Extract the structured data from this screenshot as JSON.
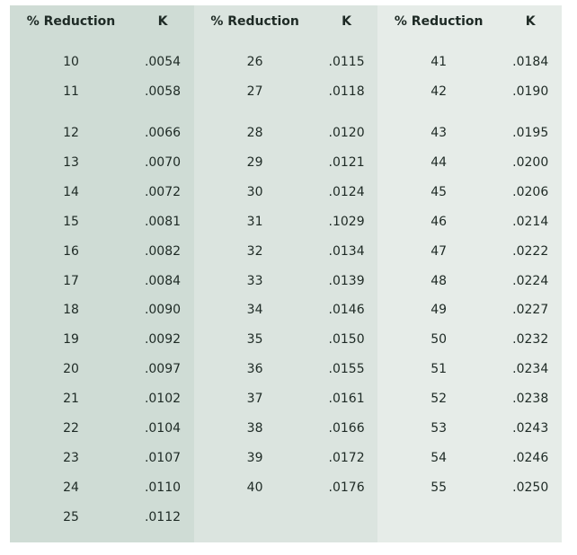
{
  "headers": {
    "pct": "% Reduction",
    "k": "K"
  },
  "columns": [
    {
      "rows": [
        {
          "pct": "10",
          "k": ".0054"
        },
        {
          "pct": "11",
          "k": ".0058"
        },
        {
          "pct": "12",
          "k": ".0066"
        },
        {
          "pct": "13",
          "k": ".0070"
        },
        {
          "pct": "14",
          "k": ".0072"
        },
        {
          "pct": "15",
          "k": ".0081"
        },
        {
          "pct": "16",
          "k": ".0082"
        },
        {
          "pct": "17",
          "k": ".0084"
        },
        {
          "pct": "18",
          "k": ".0090"
        },
        {
          "pct": "19",
          "k": ".0092"
        },
        {
          "pct": "20",
          "k": ".0097"
        },
        {
          "pct": "21",
          "k": ".0102"
        },
        {
          "pct": "22",
          "k": ".0104"
        },
        {
          "pct": "23",
          "k": ".0107"
        },
        {
          "pct": "24",
          "k": ".0110"
        },
        {
          "pct": "25",
          "k": ".0112"
        }
      ]
    },
    {
      "rows": [
        {
          "pct": "26",
          "k": ".0115"
        },
        {
          "pct": "27",
          "k": ".0118"
        },
        {
          "pct": "28",
          "k": ".0120"
        },
        {
          "pct": "29",
          "k": ".0121"
        },
        {
          "pct": "30",
          "k": ".0124"
        },
        {
          "pct": "31",
          "k": ".1029"
        },
        {
          "pct": "32",
          "k": ".0134"
        },
        {
          "pct": "33",
          "k": ".0139"
        },
        {
          "pct": "34",
          "k": ".0146"
        },
        {
          "pct": "35",
          "k": ".0150"
        },
        {
          "pct": "36",
          "k": ".0155"
        },
        {
          "pct": "37",
          "k": ".0161"
        },
        {
          "pct": "38",
          "k": ".0166"
        },
        {
          "pct": "39",
          "k": ".0172"
        },
        {
          "pct": "40",
          "k": ".0176"
        }
      ]
    },
    {
      "rows": [
        {
          "pct": "41",
          "k": ".0184"
        },
        {
          "pct": "42",
          "k": ".0190"
        },
        {
          "pct": "43",
          "k": ".0195"
        },
        {
          "pct": "44",
          "k": ".0200"
        },
        {
          "pct": "45",
          "k": ".0206"
        },
        {
          "pct": "46",
          "k": ".0214"
        },
        {
          "pct": "47",
          "k": ".0222"
        },
        {
          "pct": "48",
          "k": ".0224"
        },
        {
          "pct": "49",
          "k": ".0227"
        },
        {
          "pct": "50",
          "k": ".0232"
        },
        {
          "pct": "51",
          "k": ".0234"
        },
        {
          "pct": "52",
          "k": ".0238"
        },
        {
          "pct": "53",
          "k": ".0243"
        },
        {
          "pct": "54",
          "k": ".0246"
        },
        {
          "pct": "55",
          "k": ".0250"
        }
      ]
    }
  ]
}
